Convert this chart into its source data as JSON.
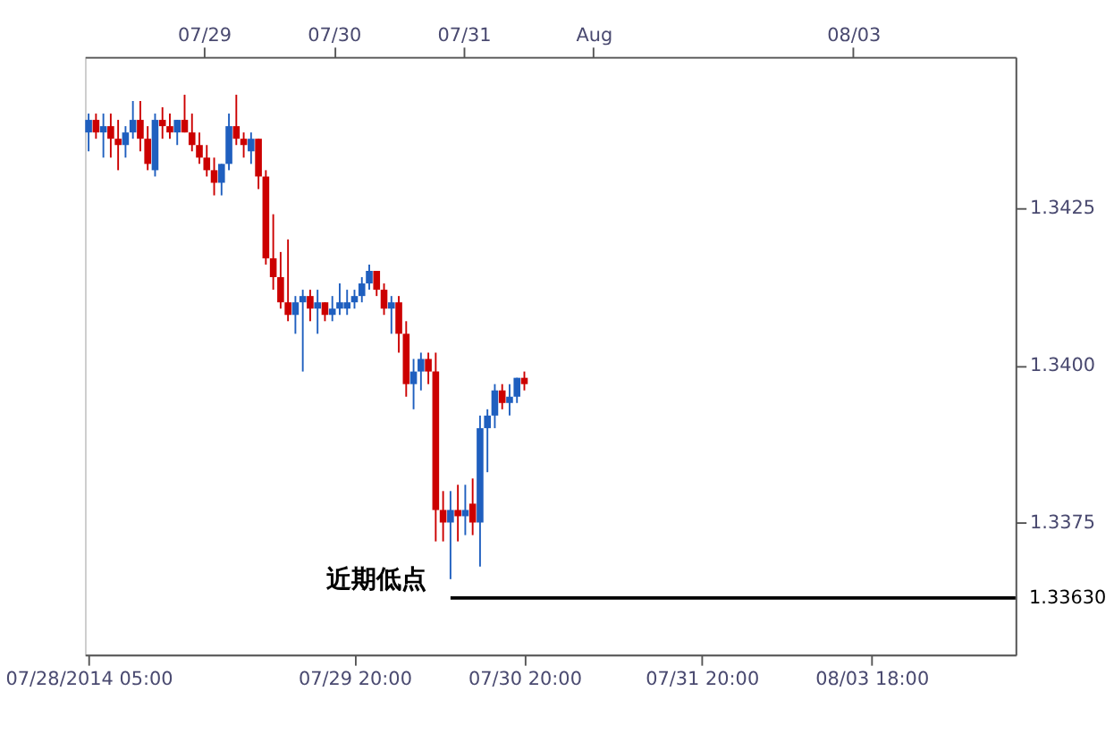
{
  "chart_data": {
    "type": "candlestick",
    "categories": [
      "07/28/2014 05:00",
      null,
      null,
      null,
      null,
      null,
      null,
      null,
      null,
      null,
      null,
      null,
      null,
      null,
      null,
      null,
      null,
      null,
      null,
      null,
      null,
      null,
      null,
      null,
      null,
      null,
      null,
      null,
      null,
      null,
      null,
      null,
      null,
      null,
      null,
      null,
      "07/29 20:00",
      null,
      null,
      null,
      null,
      null,
      null,
      null,
      null,
      null,
      null,
      null,
      null,
      null,
      null,
      null,
      null,
      null,
      null,
      null,
      null,
      null,
      null,
      "07/30 20:00",
      null,
      null,
      null,
      null,
      null,
      null,
      null,
      null,
      null,
      null,
      null,
      null,
      null,
      null,
      null,
      null,
      null,
      null,
      null,
      null,
      null,
      null,
      null,
      "07/31 20:00",
      null,
      null,
      null,
      null,
      null,
      null,
      null,
      null,
      null,
      null,
      null,
      null,
      null,
      null,
      null,
      null,
      null,
      null,
      null,
      null,
      null,
      null,
      "08/03 18:00",
      null,
      null,
      null,
      null,
      null,
      null,
      null,
      null,
      null,
      null,
      null,
      null,
      null,
      null,
      null,
      null,
      null,
      null,
      null
    ],
    "x2lim": [
      "2014-07-28T02:00",
      "2014-08-04T06:00"
    ],
    "x2ticks": [
      {
        "value": "2014-07-29",
        "label": "07/29"
      },
      {
        "value": "2014-07-30",
        "label": "07/30"
      },
      {
        "value": "2014-07-31",
        "label": "07/31"
      },
      {
        "value": "2014-08-01",
        "label": "Aug"
      },
      {
        "value": "2014-08-03",
        "label": "08/03"
      }
    ],
    "ohlc": [
      [
        1.3437,
        1.344,
        1.3434,
        1.3439
      ],
      [
        1.3439,
        1.344,
        1.3436,
        1.3437
      ],
      [
        1.3437,
        1.344,
        1.3433,
        1.3438
      ],
      [
        1.3438,
        1.344,
        1.3433,
        1.3436
      ],
      [
        1.3436,
        1.3439,
        1.3431,
        1.3435
      ],
      [
        1.3435,
        1.3438,
        1.3433,
        1.3437
      ],
      [
        1.3437,
        1.3442,
        1.3436,
        1.3439
      ],
      [
        1.3439,
        1.3442,
        1.3434,
        1.3436
      ],
      [
        1.3436,
        1.3438,
        1.3431,
        1.3432
      ],
      [
        1.3431,
        1.344,
        1.343,
        1.3439
      ],
      [
        1.3439,
        1.3441,
        1.3436,
        1.3438
      ],
      [
        1.3438,
        1.344,
        1.3436,
        1.3437
      ],
      [
        1.3437,
        1.3439,
        1.3435,
        1.3439
      ],
      [
        1.3439,
        1.3443,
        1.3437,
        1.3437
      ],
      [
        1.3437,
        1.344,
        1.3434,
        1.3435
      ],
      [
        1.3435,
        1.3437,
        1.3432,
        1.3433
      ],
      [
        1.3433,
        1.3435,
        1.343,
        1.3431
      ],
      [
        1.3431,
        1.3433,
        1.3427,
        1.3429
      ],
      [
        1.3429,
        1.3432,
        1.3427,
        1.3432
      ],
      [
        1.3432,
        1.344,
        1.3431,
        1.3438
      ],
      [
        1.3438,
        1.3443,
        1.3435,
        1.3436
      ],
      [
        1.3436,
        1.3437,
        1.3433,
        1.3435
      ],
      [
        1.3434,
        1.3437,
        1.3432,
        1.3436
      ],
      [
        1.3436,
        1.3436,
        1.3428,
        1.343
      ],
      [
        1.343,
        1.3431,
        1.3416,
        1.3417
      ],
      [
        1.3417,
        1.3424,
        1.3412,
        1.3414
      ],
      [
        1.3414,
        1.3418,
        1.3409,
        1.341
      ],
      [
        1.341,
        1.342,
        1.3407,
        1.3408
      ],
      [
        1.3408,
        1.3411,
        1.3405,
        1.341
      ],
      [
        1.341,
        1.3412,
        1.3399,
        1.3411
      ],
      [
        1.3411,
        1.3412,
        1.3407,
        1.3409
      ],
      [
        1.3409,
        1.3412,
        1.3405,
        1.341
      ],
      [
        1.341,
        1.341,
        1.3407,
        1.3408
      ],
      [
        1.3408,
        1.3411,
        1.3407,
        1.3409
      ],
      [
        1.3409,
        1.3413,
        1.3408,
        1.341
      ],
      [
        1.3409,
        1.3412,
        1.3408,
        1.341
      ],
      [
        1.341,
        1.3412,
        1.3409,
        1.3411
      ],
      [
        1.3411,
        1.3414,
        1.341,
        1.3413
      ],
      [
        1.3413,
        1.3416,
        1.3412,
        1.3415
      ],
      [
        1.3415,
        1.3415,
        1.3411,
        1.3412
      ],
      [
        1.3412,
        1.3413,
        1.3408,
        1.3409
      ],
      [
        1.3409,
        1.3411,
        1.3405,
        1.341
      ],
      [
        1.341,
        1.3411,
        1.3402,
        1.3405
      ],
      [
        1.3405,
        1.3407,
        1.3395,
        1.3397
      ],
      [
        1.3397,
        1.3401,
        1.3393,
        1.3399
      ],
      [
        1.3399,
        1.3402,
        1.3396,
        1.3401
      ],
      [
        1.3401,
        1.3402,
        1.3397,
        1.3399
      ],
      [
        1.3399,
        1.3402,
        1.3372,
        1.3377
      ],
      [
        1.3377,
        1.338,
        1.3372,
        1.3375
      ],
      [
        1.3375,
        1.338,
        1.3366,
        1.3377
      ],
      [
        1.3377,
        1.3381,
        1.3372,
        1.3376
      ],
      [
        1.3376,
        1.3381,
        1.3373,
        1.3377
      ],
      [
        1.3378,
        1.3382,
        1.3373,
        1.3375
      ],
      [
        1.3375,
        1.3392,
        1.3368,
        1.339
      ],
      [
        1.339,
        1.3393,
        1.3383,
        1.3392
      ],
      [
        1.3392,
        1.3397,
        1.339,
        1.3396
      ],
      [
        1.3396,
        1.3397,
        1.3393,
        1.3394
      ],
      [
        1.3394,
        1.3397,
        1.3392,
        1.3395
      ],
      [
        1.3395,
        1.3398,
        1.3394,
        1.3398
      ],
      [
        1.3398,
        1.3399,
        1.3396,
        1.3397
      ],
      null,
      null,
      null,
      null,
      null,
      null,
      null,
      null,
      null,
      null,
      null,
      null,
      null,
      null,
      null,
      null,
      null,
      null,
      null,
      null,
      null,
      null,
      null,
      null,
      null,
      null,
      null,
      null,
      null,
      null,
      null,
      null,
      null,
      null,
      null,
      null,
      null,
      null,
      null,
      null,
      null,
      null,
      null,
      null,
      null,
      null,
      null,
      null,
      null,
      null,
      null,
      null,
      null,
      null,
      null,
      null,
      null,
      null,
      null,
      null,
      null,
      null,
      null,
      null,
      null,
      null
    ],
    "colors": [
      "#1f5fbf",
      "#cc0000",
      "#1f5fbf",
      "#cc0000",
      "#cc0000",
      "#1f5fbf",
      "#1f5fbf",
      "#cc0000",
      "#cc0000",
      "#1f5fbf",
      "#cc0000",
      "#cc0000",
      "#1f5fbf",
      "#cc0000",
      "#cc0000",
      "#cc0000",
      "#cc0000",
      "#cc0000",
      "#1f5fbf",
      "#1f5fbf",
      "#cc0000",
      "#cc0000",
      "#1f5fbf",
      "#cc0000",
      "#cc0000",
      "#cc0000",
      "#cc0000",
      "#cc0000",
      "#1f5fbf",
      "#1f5fbf",
      "#cc0000",
      "#1f5fbf",
      "#cc0000",
      "#1f5fbf",
      "#1f5fbf",
      "#1f5fbf",
      "#1f5fbf",
      "#1f5fbf",
      "#1f5fbf",
      "#cc0000",
      "#cc0000",
      "#1f5fbf",
      "#cc0000",
      "#cc0000",
      "#1f5fbf",
      "#1f5fbf",
      "#cc0000",
      "#cc0000",
      "#cc0000",
      "#1f5fbf",
      "#cc0000",
      "#1f5fbf",
      "#cc0000",
      "#1f5fbf",
      "#1f5fbf",
      "#1f5fbf",
      "#cc0000",
      "#1f5fbf",
      "#1f5fbf",
      "#cc0000",
      null,
      null,
      null,
      null,
      null,
      null,
      null,
      null,
      null,
      null,
      null,
      null,
      null,
      null,
      null,
      null,
      null,
      null,
      null,
      null,
      null,
      null,
      null,
      null,
      null,
      null,
      null,
      null,
      null,
      null,
      null,
      null,
      null,
      null,
      null,
      null,
      null,
      null,
      null,
      null,
      null,
      null,
      null,
      null,
      null,
      null,
      null,
      null,
      null,
      null,
      null,
      null,
      null,
      null,
      null,
      null,
      null,
      null,
      null,
      null,
      null,
      null,
      null,
      null,
      null,
      null
    ],
    "ylim": [
      1.3354,
      1.3449
    ],
    "yticks": [
      1.3375,
      {
        "value": 1.34,
        "label": "1.3400"
      },
      1.3425
    ],
    "ref_lines": [
      {
        "axis": "y",
        "value": 1.3363,
        "label": "1.33630",
        "color": "#000000"
      }
    ],
    "annotations": [
      "近期低点"
    ],
    "grid": false
  }
}
